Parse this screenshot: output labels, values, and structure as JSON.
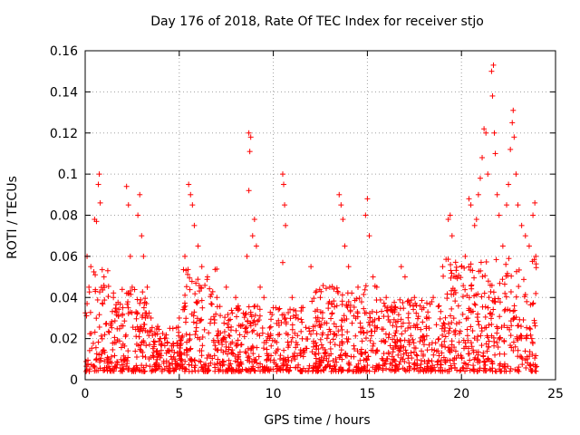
{
  "chart_data": {
    "type": "scatter",
    "title": "Day 176 of 2018, Rate Of TEC Index for receiver stjo",
    "xlabel": "GPS time / hours",
    "ylabel": "ROTI / TECUs",
    "xlim": [
      0,
      25
    ],
    "ylim": [
      0,
      0.16
    ],
    "xticks": [
      "0",
      "5",
      "10",
      "15",
      "20",
      "25"
    ],
    "yticks": [
      "0",
      "0.02",
      "0.04",
      "0.06",
      "0.08",
      "0.1",
      "0.12",
      "0.14",
      "0.16"
    ],
    "grid": true,
    "marker": "+",
    "color": "#ff0000",
    "series": [
      {
        "name": "ROTI",
        "points": [
          [
            0.1,
            0.06
          ],
          [
            0.2,
            0.045
          ],
          [
            0.3,
            0.055
          ],
          [
            0.5,
            0.078
          ],
          [
            0.6,
            0.077
          ],
          [
            0.7,
            0.095
          ],
          [
            0.75,
            0.1
          ],
          [
            0.8,
            0.086
          ],
          [
            1.0,
            0.05
          ],
          [
            1.2,
            0.053
          ],
          [
            1.5,
            0.04
          ],
          [
            2.0,
            0.035
          ],
          [
            2.2,
            0.094
          ],
          [
            2.3,
            0.085
          ],
          [
            2.4,
            0.06
          ],
          [
            2.5,
            0.045
          ],
          [
            2.8,
            0.08
          ],
          [
            2.9,
            0.09
          ],
          [
            3.0,
            0.07
          ],
          [
            3.1,
            0.06
          ],
          [
            3.3,
            0.045
          ],
          [
            3.5,
            0.03
          ],
          [
            4.0,
            0.02
          ],
          [
            4.5,
            0.025
          ],
          [
            5.0,
            0.03
          ],
          [
            5.3,
            0.06
          ],
          [
            5.5,
            0.095
          ],
          [
            5.6,
            0.09
          ],
          [
            5.7,
            0.085
          ],
          [
            5.8,
            0.075
          ],
          [
            6.0,
            0.065
          ],
          [
            6.2,
            0.055
          ],
          [
            6.5,
            0.05
          ],
          [
            7.0,
            0.04
          ],
          [
            7.5,
            0.045
          ],
          [
            8.0,
            0.04
          ],
          [
            8.6,
            0.06
          ],
          [
            8.7,
            0.12
          ],
          [
            8.8,
            0.118
          ],
          [
            8.75,
            0.111
          ],
          [
            8.7,
            0.092
          ],
          [
            8.9,
            0.07
          ],
          [
            9.0,
            0.078
          ],
          [
            9.1,
            0.065
          ],
          [
            9.3,
            0.045
          ],
          [
            9.5,
            0.04
          ],
          [
            10.0,
            0.035
          ],
          [
            10.5,
            0.1
          ],
          [
            10.55,
            0.095
          ],
          [
            10.6,
            0.085
          ],
          [
            10.65,
            0.075
          ],
          [
            10.5,
            0.057
          ],
          [
            11.0,
            0.04
          ],
          [
            11.5,
            0.035
          ],
          [
            12.0,
            0.055
          ],
          [
            12.5,
            0.04
          ],
          [
            13.0,
            0.045
          ],
          [
            13.5,
            0.09
          ],
          [
            13.6,
            0.085
          ],
          [
            13.7,
            0.078
          ],
          [
            13.8,
            0.065
          ],
          [
            14.0,
            0.055
          ],
          [
            14.5,
            0.045
          ],
          [
            14.9,
            0.08
          ],
          [
            15.0,
            0.088
          ],
          [
            15.1,
            0.07
          ],
          [
            15.3,
            0.05
          ],
          [
            15.5,
            0.045
          ],
          [
            16.0,
            0.04
          ],
          [
            16.5,
            0.035
          ],
          [
            16.8,
            0.055
          ],
          [
            17.0,
            0.05
          ],
          [
            17.5,
            0.04
          ],
          [
            18.0,
            0.035
          ],
          [
            18.5,
            0.04
          ],
          [
            19.0,
            0.055
          ],
          [
            19.3,
            0.078
          ],
          [
            19.4,
            0.08
          ],
          [
            19.5,
            0.07
          ],
          [
            19.7,
            0.05
          ],
          [
            20.0,
            0.055
          ],
          [
            20.2,
            0.06
          ],
          [
            20.4,
            0.088
          ],
          [
            20.5,
            0.085
          ],
          [
            20.7,
            0.075
          ],
          [
            20.8,
            0.078
          ],
          [
            20.9,
            0.09
          ],
          [
            21.0,
            0.098
          ],
          [
            21.1,
            0.108
          ],
          [
            21.2,
            0.122
          ],
          [
            21.3,
            0.12
          ],
          [
            21.4,
            0.1
          ],
          [
            21.6,
            0.15
          ],
          [
            21.7,
            0.153
          ],
          [
            21.65,
            0.138
          ],
          [
            21.75,
            0.12
          ],
          [
            21.8,
            0.11
          ],
          [
            21.9,
            0.09
          ],
          [
            22.0,
            0.08
          ],
          [
            22.2,
            0.065
          ],
          [
            22.4,
            0.085
          ],
          [
            22.5,
            0.095
          ],
          [
            22.6,
            0.112
          ],
          [
            22.7,
            0.125
          ],
          [
            22.75,
            0.131
          ],
          [
            22.8,
            0.118
          ],
          [
            22.9,
            0.1
          ],
          [
            23.0,
            0.085
          ],
          [
            23.2,
            0.075
          ],
          [
            23.4,
            0.07
          ],
          [
            23.6,
            0.065
          ],
          [
            23.8,
            0.08
          ],
          [
            23.9,
            0.086
          ],
          [
            23.95,
            0.06
          ]
        ]
      }
    ]
  }
}
